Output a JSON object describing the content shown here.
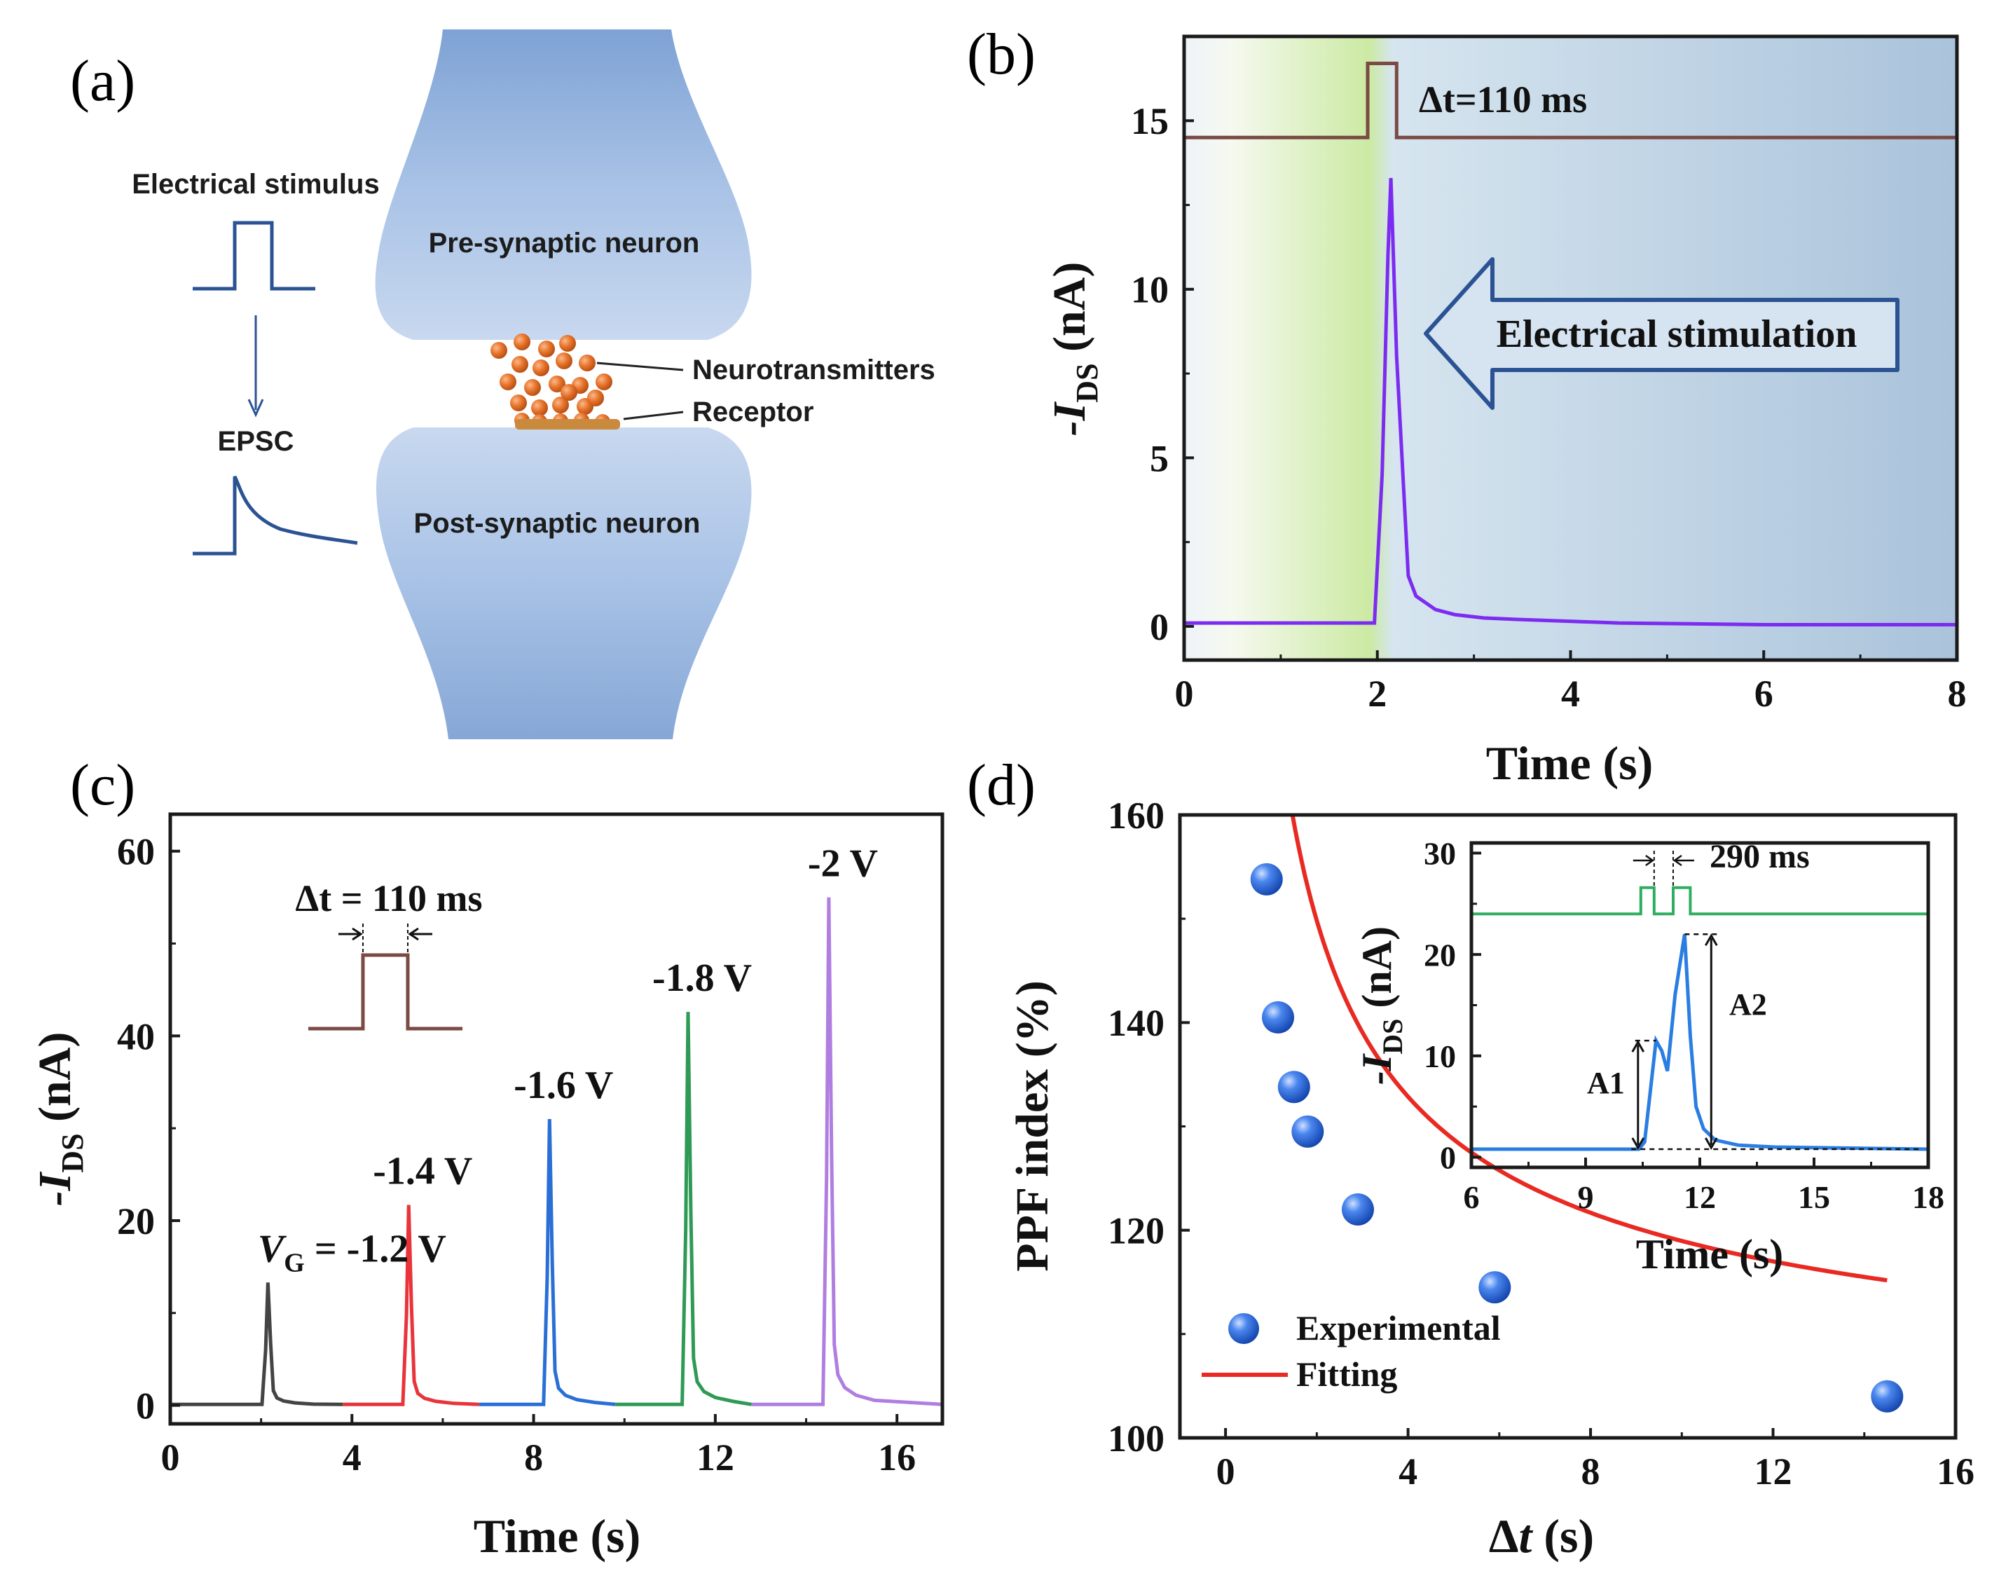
{
  "panel_labels": {
    "a": "(a)",
    "b": "(b)",
    "c": "(c)",
    "d": "(d)"
  },
  "panel_a": {
    "electrical_stimulus": "Electrical stimulus",
    "epsc": "EPSC",
    "pre_synaptic": "Pre-synaptic neuron",
    "post_synaptic": "Post-synaptic neuron",
    "neurotransmitters": "Neurotransmitters",
    "receptor": "Receptor"
  },
  "colors": {
    "pulse_brown": "#7a4a43",
    "trace_purple": "#7b2cf0",
    "stim_arrow": "#2b5394",
    "neuron_blue": "#a9c4e6",
    "trace_black": "#444444",
    "trace_red": "#e8343a",
    "trace_blue": "#2a6fd6",
    "trace_green": "#2f9a55",
    "trace_violet": "#b07ee0",
    "fit_red": "#e82a22",
    "dot_blue": "#1f62d8",
    "inset_green": "#2fae60",
    "inset_blue": "#2a7de1"
  },
  "chart_data": [
    {
      "panel": "b",
      "type": "line",
      "xlabel": "Time (s)",
      "ylabel": "-I",
      "ylabel_sub": "DS",
      "ylabel_unit": " (nA)",
      "xlim": [
        0,
        8
      ],
      "ylim": [
        -1,
        17.5
      ],
      "xticks": [
        0,
        2,
        4,
        6,
        8
      ],
      "yticks": [
        0,
        5,
        10,
        15
      ],
      "pulse_annotation": "Δt=110 ms",
      "stim_label": "Electrical stimulation",
      "pulse": {
        "x": [
          0,
          1.9,
          1.9,
          2.2,
          2.2,
          8
        ],
        "y": [
          14.5,
          14.5,
          16.7,
          16.7,
          14.5,
          14.5
        ]
      },
      "series": [
        {
          "name": "EPSC",
          "x": [
            0,
            1.97,
            2.05,
            2.11,
            2.14,
            2.2,
            2.32,
            2.4,
            2.6,
            2.8,
            3.1,
            3.5,
            4.5,
            6,
            8
          ],
          "y": [
            0.1,
            0.1,
            4.5,
            11.0,
            13.3,
            8.0,
            1.5,
            0.9,
            0.5,
            0.35,
            0.25,
            0.2,
            0.1,
            0.05,
            0.05
          ]
        }
      ]
    },
    {
      "panel": "c",
      "type": "line",
      "xlabel": "Time (s)",
      "ylabel": "-I",
      "ylabel_sub": "DS",
      "ylabel_unit": " (nA)",
      "xlim": [
        0,
        17
      ],
      "ylim": [
        -2,
        64
      ],
      "xticks": [
        0,
        4,
        8,
        12,
        16
      ],
      "yticks": [
        0,
        20,
        40,
        60
      ],
      "inset_label": "Δt = 110 ms",
      "series": [
        {
          "name": "-1.2 V",
          "label_prefix": "V",
          "label_sub": "G",
          "label": " = -1.2 V",
          "t0": 0,
          "t1": 3.8,
          "tp": 2.15,
          "peak": 13.3
        },
        {
          "name": "-1.4 V",
          "label": "-1.4 V",
          "t0": 3.8,
          "t1": 6.8,
          "tp": 5.25,
          "peak": 21.7
        },
        {
          "name": "-1.6 V",
          "label": "-1.6 V",
          "t0": 6.8,
          "t1": 9.8,
          "tp": 8.35,
          "peak": 31.0
        },
        {
          "name": "-1.8 V",
          "label": "-1.8 V",
          "t0": 9.8,
          "t1": 12.8,
          "tp": 11.4,
          "peak": 42.6
        },
        {
          "name": "-2 V",
          "label": "-2 V",
          "t0": 12.8,
          "t1": 17,
          "tp": 14.5,
          "peak": 55.0
        }
      ]
    },
    {
      "panel": "d",
      "type": "scatter",
      "xlabel_symbol": "Δ",
      "xlabel_var": "t",
      "xlabel_unit": " (s)",
      "ylabel": "PPF index (%)",
      "xlim": [
        -1,
        16
      ],
      "ylim": [
        100,
        160
      ],
      "xticks": [
        0,
        4,
        8,
        12,
        16
      ],
      "yticks": [
        100,
        120,
        140,
        160
      ],
      "legend": {
        "experimental": "Experimental",
        "fitting": "Fitting"
      },
      "series": [
        {
          "name": "Experimental",
          "x": [
            0.9,
            1.15,
            1.5,
            1.8,
            2.9,
            5.9,
            14.5
          ],
          "y": [
            153.8,
            140.5,
            133.8,
            129.5,
            122.0,
            114.5,
            104.0
          ]
        },
        {
          "name": "Fitting",
          "model": "y = 100 + 75.5 * x^-0.6",
          "x_range": [
            0.85,
            14.5
          ]
        }
      ],
      "inset": {
        "type": "line",
        "xlabel": "Time (s)",
        "ylabel": "-I",
        "ylabel_sub": "DS",
        "ylabel_unit": " (nA)",
        "xlim": [
          6,
          18
        ],
        "ylim": [
          -1,
          31
        ],
        "xticks": [
          6,
          9,
          12,
          15,
          18
        ],
        "yticks": [
          0,
          10,
          20,
          30
        ],
        "interval_label": "290 ms",
        "a1": "A1",
        "a2": "A2",
        "pulse": {
          "x": [
            6,
            10.45,
            10.45,
            10.8,
            10.8,
            11.3,
            11.3,
            11.75,
            11.75,
            18
          ],
          "y": [
            24,
            24,
            26.6,
            26.6,
            24,
            24,
            26.6,
            26.6,
            24,
            24
          ]
        },
        "series": [
          {
            "name": "EPSC",
            "x": [
              6,
              10.4,
              10.55,
              10.85,
              11.0,
              11.15,
              11.35,
              11.6,
              11.75,
              11.9,
              12.1,
              12.4,
              13,
              14,
              18
            ],
            "y": [
              0.8,
              0.8,
              1.5,
              11.5,
              10.5,
              8.5,
              16.0,
              22.0,
              12.0,
              5.0,
              2.8,
              1.7,
              1.2,
              1.0,
              0.8
            ]
          }
        ]
      }
    }
  ]
}
